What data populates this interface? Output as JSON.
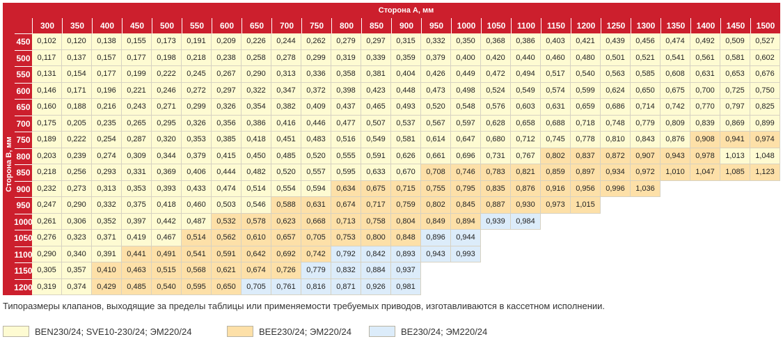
{
  "table": {
    "top_header": "Сторона А, мм",
    "side_header": "Сторона В, мм",
    "columns": [
      "300",
      "350",
      "400",
      "450",
      "500",
      "550",
      "600",
      "650",
      "700",
      "750",
      "800",
      "850",
      "900",
      "950",
      "1000",
      "1050",
      "1100",
      "1150",
      "1200",
      "1250",
      "1300",
      "1350",
      "1400",
      "1450",
      "1500"
    ],
    "rows": [
      {
        "label": "450",
        "values": [
          "0,102",
          "0,120",
          "0,138",
          "0,155",
          "0,173",
          "0,191",
          "0,209",
          "0,226",
          "0,244",
          "0,262",
          "0,279",
          "0,297",
          "0,315",
          "0,332",
          "0,350",
          "0,368",
          "0,386",
          "0,403",
          "0,421",
          "0,439",
          "0,456",
          "0,474",
          "0,492",
          "0,509",
          "0,527"
        ],
        "categories": [
          1,
          1,
          1,
          1,
          1,
          1,
          1,
          1,
          1,
          1,
          1,
          1,
          1,
          1,
          1,
          1,
          1,
          1,
          1,
          1,
          1,
          1,
          1,
          1,
          1
        ]
      },
      {
        "label": "500",
        "values": [
          "0,117",
          "0,137",
          "0,157",
          "0,177",
          "0,198",
          "0,218",
          "0,238",
          "0,258",
          "0,278",
          "0,299",
          "0,319",
          "0,339",
          "0,359",
          "0,379",
          "0,400",
          "0,420",
          "0,440",
          "0,460",
          "0,480",
          "0,501",
          "0,521",
          "0,541",
          "0,561",
          "0,581",
          "0,602"
        ],
        "categories": [
          1,
          1,
          1,
          1,
          1,
          1,
          1,
          1,
          1,
          1,
          1,
          1,
          1,
          1,
          1,
          1,
          1,
          1,
          1,
          1,
          1,
          1,
          1,
          1,
          1
        ]
      },
      {
        "label": "550",
        "values": [
          "0,131",
          "0,154",
          "0,177",
          "0,199",
          "0,222",
          "0,245",
          "0,267",
          "0,290",
          "0,313",
          "0,336",
          "0,358",
          "0,381",
          "0,404",
          "0,426",
          "0,449",
          "0,472",
          "0,494",
          "0,517",
          "0,540",
          "0,563",
          "0,585",
          "0,608",
          "0,631",
          "0,653",
          "0,676"
        ],
        "categories": [
          1,
          1,
          1,
          1,
          1,
          1,
          1,
          1,
          1,
          1,
          1,
          1,
          1,
          1,
          1,
          1,
          1,
          1,
          1,
          1,
          1,
          1,
          1,
          1,
          1
        ]
      },
      {
        "label": "600",
        "values": [
          "0,146",
          "0,171",
          "0,196",
          "0,221",
          "0,246",
          "0,272",
          "0,297",
          "0,322",
          "0,347",
          "0,372",
          "0,398",
          "0,423",
          "0,448",
          "0,473",
          "0,498",
          "0,524",
          "0,549",
          "0,574",
          "0,599",
          "0,624",
          "0,650",
          "0,675",
          "0,700",
          "0,725",
          "0,750"
        ],
        "categories": [
          1,
          1,
          1,
          1,
          1,
          1,
          1,
          1,
          1,
          1,
          1,
          1,
          1,
          1,
          1,
          1,
          1,
          1,
          1,
          1,
          1,
          1,
          1,
          1,
          1
        ]
      },
      {
        "label": "650",
        "values": [
          "0,160",
          "0,188",
          "0,216",
          "0,243",
          "0,271",
          "0,299",
          "0,326",
          "0,354",
          "0,382",
          "0,409",
          "0,437",
          "0,465",
          "0,493",
          "0,520",
          "0,548",
          "0,576",
          "0,603",
          "0,631",
          "0,659",
          "0,686",
          "0,714",
          "0,742",
          "0,770",
          "0,797",
          "0,825"
        ],
        "categories": [
          1,
          1,
          1,
          1,
          1,
          1,
          1,
          1,
          1,
          1,
          1,
          1,
          1,
          1,
          1,
          1,
          1,
          1,
          1,
          1,
          1,
          1,
          1,
          1,
          1
        ]
      },
      {
        "label": "700",
        "values": [
          "0,175",
          "0,205",
          "0,235",
          "0,265",
          "0,295",
          "0,326",
          "0,356",
          "0,386",
          "0,416",
          "0,446",
          "0,477",
          "0,507",
          "0,537",
          "0,567",
          "0,597",
          "0,628",
          "0,658",
          "0,688",
          "0,718",
          "0,748",
          "0,779",
          "0,809",
          "0,839",
          "0,869",
          "0,899"
        ],
        "categories": [
          1,
          1,
          1,
          1,
          1,
          1,
          1,
          1,
          1,
          1,
          1,
          1,
          1,
          1,
          1,
          1,
          1,
          1,
          1,
          1,
          1,
          1,
          1,
          1,
          1
        ]
      },
      {
        "label": "750",
        "values": [
          "0,189",
          "0,222",
          "0,254",
          "0,287",
          "0,320",
          "0,353",
          "0,385",
          "0,418",
          "0,451",
          "0,483",
          "0,516",
          "0,549",
          "0,581",
          "0,614",
          "0,647",
          "0,680",
          "0,712",
          "0,745",
          "0,778",
          "0,810",
          "0,843",
          "0,876",
          "0,908",
          "0,941",
          "0,974"
        ],
        "categories": [
          1,
          1,
          1,
          1,
          1,
          1,
          1,
          1,
          1,
          1,
          1,
          1,
          1,
          1,
          1,
          1,
          1,
          1,
          1,
          1,
          1,
          1,
          2,
          2,
          2
        ]
      },
      {
        "label": "800",
        "values": [
          "0,203",
          "0,239",
          "0,274",
          "0,309",
          "0,344",
          "0,379",
          "0,415",
          "0,450",
          "0,485",
          "0,520",
          "0,555",
          "0,591",
          "0,626",
          "0,661",
          "0,696",
          "0,731",
          "0,767",
          "0,802",
          "0,837",
          "0,872",
          "0,907",
          "0,943",
          "0,978",
          "1,013",
          "1,048"
        ],
        "categories": [
          1,
          1,
          1,
          1,
          1,
          1,
          1,
          1,
          1,
          1,
          1,
          1,
          1,
          1,
          1,
          1,
          1,
          2,
          2,
          2,
          2,
          2,
          2,
          1,
          1
        ]
      },
      {
        "label": "850",
        "values": [
          "0,218",
          "0,256",
          "0,293",
          "0,331",
          "0,369",
          "0,406",
          "0,444",
          "0,482",
          "0,520",
          "0,557",
          "0,595",
          "0,633",
          "0,670",
          "0,708",
          "0,746",
          "0,783",
          "0,821",
          "0,859",
          "0,897",
          "0,934",
          "0,972",
          "1,010",
          "1,047",
          "1,085",
          "1,123"
        ],
        "categories": [
          1,
          1,
          1,
          1,
          1,
          1,
          1,
          1,
          1,
          1,
          1,
          1,
          1,
          2,
          2,
          2,
          2,
          2,
          2,
          2,
          2,
          2,
          2,
          2,
          2
        ]
      },
      {
        "label": "900",
        "values": [
          "0,232",
          "0,273",
          "0,313",
          "0,353",
          "0,393",
          "0,433",
          "0,474",
          "0,514",
          "0,554",
          "0,594",
          "0,634",
          "0,675",
          "0,715",
          "0,755",
          "0,795",
          "0,835",
          "0,876",
          "0,916",
          "0,956",
          "0,996",
          "1,036"
        ],
        "categories": [
          1,
          1,
          1,
          1,
          1,
          1,
          1,
          1,
          1,
          1,
          2,
          2,
          2,
          2,
          2,
          2,
          2,
          2,
          2,
          2,
          2
        ]
      },
      {
        "label": "950",
        "values": [
          "0,247",
          "0,290",
          "0,332",
          "0,375",
          "0,418",
          "0,460",
          "0,503",
          "0,546",
          "0,588",
          "0,631",
          "0,674",
          "0,717",
          "0,759",
          "0,802",
          "0,845",
          "0,887",
          "0,930",
          "0,973",
          "1,015"
        ],
        "categories": [
          1,
          1,
          1,
          1,
          1,
          1,
          1,
          1,
          2,
          2,
          2,
          2,
          2,
          2,
          2,
          2,
          2,
          2,
          2
        ]
      },
      {
        "label": "1000",
        "values": [
          "0,261",
          "0,306",
          "0,352",
          "0,397",
          "0,442",
          "0,487",
          "0,532",
          "0,578",
          "0,623",
          "0,668",
          "0,713",
          "0,758",
          "0,804",
          "0,849",
          "0,894",
          "0,939",
          "0,984"
        ],
        "categories": [
          1,
          1,
          1,
          1,
          1,
          1,
          2,
          2,
          2,
          2,
          2,
          2,
          2,
          2,
          2,
          3,
          3
        ]
      },
      {
        "label": "1050",
        "values": [
          "0,276",
          "0,323",
          "0,371",
          "0,419",
          "0,467",
          "0,514",
          "0,562",
          "0,610",
          "0,657",
          "0,705",
          "0,753",
          "0,800",
          "0,848",
          "0,896",
          "0,944"
        ],
        "categories": [
          1,
          1,
          1,
          1,
          1,
          2,
          2,
          2,
          2,
          2,
          2,
          2,
          2,
          3,
          3
        ]
      },
      {
        "label": "1100",
        "values": [
          "0,290",
          "0,340",
          "0,391",
          "0,441",
          "0,491",
          "0,541",
          "0,591",
          "0,642",
          "0,692",
          "0,742",
          "0,792",
          "0,842",
          "0,893",
          "0,943",
          "0,993"
        ],
        "categories": [
          1,
          1,
          1,
          2,
          2,
          2,
          2,
          2,
          2,
          2,
          3,
          3,
          3,
          3,
          3
        ]
      },
      {
        "label": "1150",
        "values": [
          "0,305",
          "0,357",
          "0,410",
          "0,463",
          "0,515",
          "0,568",
          "0,621",
          "0,674",
          "0,726",
          "0,779",
          "0,832",
          "0,884",
          "0,937"
        ],
        "categories": [
          1,
          1,
          2,
          2,
          2,
          2,
          2,
          2,
          2,
          3,
          3,
          3,
          3
        ]
      },
      {
        "label": "1200",
        "values": [
          "0,319",
          "0,374",
          "0,429",
          "0,485",
          "0,540",
          "0,595",
          "0,650",
          "0,705",
          "0,761",
          "0,816",
          "0,871",
          "0,926",
          "0,981"
        ],
        "categories": [
          1,
          1,
          2,
          2,
          2,
          2,
          2,
          3,
          3,
          3,
          3,
          3,
          3
        ]
      }
    ]
  },
  "note": "Типоразмеры клапанов, выходящие за пределы таблицы или применяемости требуемых приводов, изготавливаются в кассетном исполнении.",
  "legend": [
    {
      "label": "BEN230/24; SVE10-230/24; ЭМ220/24",
      "color": "#fefbd2"
    },
    {
      "label": "BEE230/24; ЭМ220/24",
      "color": "#fde0a8"
    },
    {
      "label": "BE230/24; ЭМ220/24",
      "color": "#dcecfa"
    }
  ],
  "colors": {
    "header": "#cc1f2d",
    "cat1": "#fefbd2",
    "cat2": "#fde0a8",
    "cat3": "#dcecfa"
  }
}
